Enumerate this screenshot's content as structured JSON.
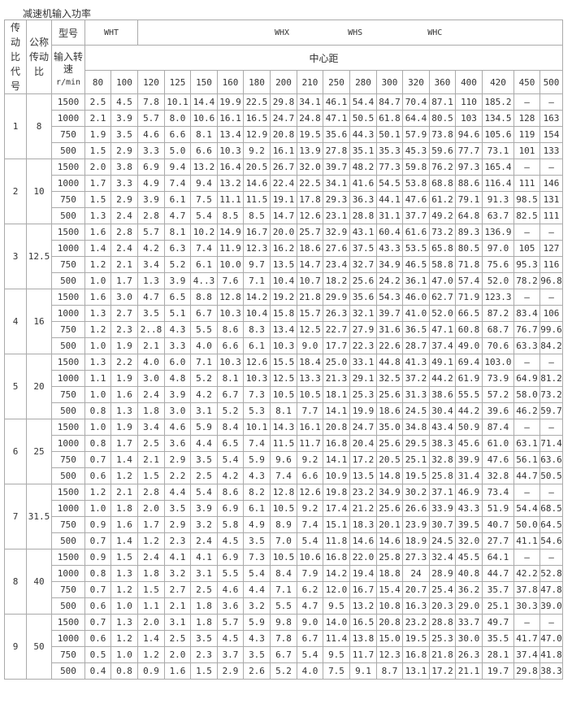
{
  "title": "减速机输入功率",
  "header": {
    "code_label": "传动比代号",
    "ratio_label": "公称传动比",
    "model_label": "型号",
    "speed_label": "输入转速",
    "speed_unit": "r/min",
    "models": [
      "WHT",
      "WHX",
      "WHS",
      "WHC"
    ],
    "center_distance_label": "中心距",
    "center_distances": [
      "80",
      "100",
      "120",
      "125",
      "150",
      "160",
      "180",
      "200",
      "210",
      "250",
      "280",
      "300",
      "320",
      "360",
      "400",
      "420",
      "450",
      "500"
    ]
  },
  "groups": [
    {
      "code": "1",
      "ratio": "8",
      "rows": [
        {
          "speed": "1500",
          "values": [
            "2.5",
            "4.5",
            "7.8",
            "10.1",
            "14.4",
            "19.9",
            "22.5",
            "29.8",
            "34.1",
            "46.1",
            "54.4",
            "84.7",
            "70.4",
            "87.1",
            "110",
            "185.2",
            "—",
            "—"
          ]
        },
        {
          "speed": "1000",
          "values": [
            "2.1",
            "3.9",
            "5.7",
            "8.0",
            "10.6",
            "16.1",
            "16.5",
            "24.7",
            "24.8",
            "47.1",
            "50.5",
            "61.8",
            "64.4",
            "80.5",
            "103",
            "134.5",
            "128",
            "163"
          ]
        },
        {
          "speed": "750",
          "values": [
            "1.9",
            "3.5",
            "4.6",
            "6.6",
            "8.1",
            "13.4",
            "12.9",
            "20.8",
            "19.5",
            "35.6",
            "44.3",
            "50.1",
            "57.9",
            "73.8",
            "94.6",
            "105.6",
            "119",
            "154"
          ]
        },
        {
          "speed": "500",
          "values": [
            "1.5",
            "2.9",
            "3.3",
            "5.0",
            "6.6",
            "10.3",
            "9.2",
            "16.1",
            "13.9",
            "27.8",
            "35.1",
            "35.3",
            "45.3",
            "59.6",
            "77.7",
            "73.1",
            "101",
            "133"
          ]
        }
      ]
    },
    {
      "code": "2",
      "ratio": "10",
      "rows": [
        {
          "speed": "1500",
          "values": [
            "2.0",
            "3.8",
            "6.9",
            "9.4",
            "13.2",
            "16.4",
            "20.5",
            "26.7",
            "32.0",
            "39.7",
            "48.2",
            "77.3",
            "59.8",
            "76.2",
            "97.3",
            "165.4",
            "—",
            "—"
          ]
        },
        {
          "speed": "1000",
          "values": [
            "1.7",
            "3.3",
            "4.9",
            "7.4",
            "9.4",
            "13.2",
            "14.6",
            "22.4",
            "22.5",
            "34.1",
            "41.6",
            "54.5",
            "53.8",
            "68.8",
            "88.6",
            "116.4",
            "111",
            "146"
          ]
        },
        {
          "speed": "750",
          "values": [
            "1.5",
            "2.9",
            "3.9",
            "6.1",
            "7.5",
            "11.1",
            "11.5",
            "19.1",
            "17.8",
            "29.3",
            "36.3",
            "44.1",
            "47.6",
            "61.2",
            "79.1",
            "91.3",
            "98.5",
            "131"
          ]
        },
        {
          "speed": "500",
          "values": [
            "1.3",
            "2.4",
            "2.8",
            "4.7",
            "5.4",
            "8.5",
            "8.5",
            "14.7",
            "12.6",
            "23.1",
            "28.8",
            "31.1",
            "37.7",
            "49.2",
            "64.8",
            "63.7",
            "82.5",
            "111"
          ]
        }
      ]
    },
    {
      "code": "3",
      "ratio": "12.5",
      "rows": [
        {
          "speed": "1500",
          "values": [
            "1.6",
            "2.8",
            "5.7",
            "8.1",
            "10.2",
            "14.9",
            "16.7",
            "20.0",
            "25.7",
            "32.9",
            "43.1",
            "60.4",
            "61.6",
            "73.2",
            "89.3",
            "136.9",
            "—",
            "—"
          ]
        },
        {
          "speed": "1000",
          "values": [
            "1.4",
            "2.4",
            "4.2",
            "6.3",
            "7.4",
            "11.9",
            "12.3",
            "16.2",
            "18.6",
            "27.6",
            "37.5",
            "43.3",
            "53.5",
            "65.8",
            "80.5",
            "97.0",
            "105",
            "127"
          ]
        },
        {
          "speed": "750",
          "values": [
            "1.2",
            "2.1",
            "3.4",
            "5.2",
            "6.1",
            "10.0",
            "9.7",
            "13.5",
            "14.7",
            "23.4",
            "32.7",
            "34.9",
            "46.5",
            "58.8",
            "71.8",
            "75.6",
            "95.3",
            "116"
          ]
        },
        {
          "speed": "500",
          "values": [
            "1.0",
            "1.7",
            "1.3",
            "3.9",
            "4..3",
            "7.6",
            "7.1",
            "10.4",
            "10.7",
            "18.2",
            "25.6",
            "24.2",
            "36.1",
            "47.0",
            "57.4",
            "52.0",
            "78.2",
            "96.8"
          ]
        }
      ]
    },
    {
      "code": "4",
      "ratio": "16",
      "rows": [
        {
          "speed": "1500",
          "values": [
            "1.6",
            "3.0",
            "4.7",
            "6.5",
            "8.8",
            "12.8",
            "14.2",
            "19.2",
            "21.8",
            "29.9",
            "35.6",
            "54.3",
            "46.0",
            "62.7",
            "71.9",
            "123.3",
            "—",
            "—"
          ]
        },
        {
          "speed": "1000",
          "values": [
            "1.3",
            "2.7",
            "3.5",
            "5.1",
            "6.7",
            "10.3",
            "10.4",
            "15.8",
            "15.7",
            "26.3",
            "32.1",
            "39.7",
            "41.0",
            "52.0",
            "66.5",
            "87.2",
            "83.4",
            "106"
          ]
        },
        {
          "speed": "750",
          "values": [
            "1.2",
            "2.3",
            "2..8",
            "4.3",
            "5.5",
            "8.6",
            "8.3",
            "13.4",
            "12.5",
            "22.7",
            "27.9",
            "31.6",
            "36.5",
            "47.1",
            "60.8",
            "68.7",
            "76.7",
            "99.6"
          ]
        },
        {
          "speed": "500",
          "values": [
            "1.0",
            "1.9",
            "2.1",
            "3.3",
            "4.0",
            "6.6",
            "6.1",
            "10.3",
            "9.0",
            "17.7",
            "22.3",
            "22.6",
            "28.7",
            "37.4",
            "49.0",
            "70.6",
            "63.3",
            "84.2"
          ]
        }
      ]
    },
    {
      "code": "5",
      "ratio": "20",
      "rows": [
        {
          "speed": "1500",
          "values": [
            "1.3",
            "2.2",
            "4.0",
            "6.0",
            "7.1",
            "10.3",
            "12.6",
            "15.5",
            "18.4",
            "25.0",
            "33.1",
            "44.8",
            "41.3",
            "49.1",
            "69.4",
            "103.0",
            "—",
            "—"
          ]
        },
        {
          "speed": "1000",
          "values": [
            "1.1",
            "1.9",
            "3.0",
            "4.8",
            "5.2",
            "8.1",
            "10.3",
            "12.5",
            "13.3",
            "21.3",
            "29.1",
            "32.5",
            "37.2",
            "44.2",
            "61.9",
            "73.9",
            "64.9",
            "81.2"
          ]
        },
        {
          "speed": "750",
          "values": [
            "1.0",
            "1.6",
            "2.4",
            "3.9",
            "4.2",
            "6.7",
            "7.3",
            "10.5",
            "10.5",
            "18.1",
            "25.3",
            "25.6",
            "31.3",
            "38.6",
            "55.5",
            "57.2",
            "58.0",
            "73.2"
          ]
        },
        {
          "speed": "500",
          "values": [
            "0.8",
            "1.3",
            "1.8",
            "3.0",
            "3.1",
            "5.2",
            "5.3",
            "8.1",
            "7.7",
            "14.1",
            "19.9",
            "18.6",
            "24.5",
            "30.4",
            "44.2",
            "39.6",
            "46.2",
            "59.7"
          ]
        }
      ]
    },
    {
      "code": "6",
      "ratio": "25",
      "rows": [
        {
          "speed": "1500",
          "values": [
            "1.0",
            "1.9",
            "3.4",
            "4.6",
            "5.9",
            "8.4",
            "10.1",
            "14.3",
            "16.1",
            "20.8",
            "24.7",
            "35.0",
            "34.8",
            "43.4",
            "50.9",
            "87.4",
            "—",
            "—"
          ]
        },
        {
          "speed": "1000",
          "values": [
            "0.8",
            "1.7",
            "2.5",
            "3.6",
            "4.4",
            "6.5",
            "7.4",
            "11.5",
            "11.7",
            "16.8",
            "20.4",
            "25.6",
            "29.5",
            "38.3",
            "45.6",
            "61.0",
            "63.1",
            "71.4"
          ]
        },
        {
          "speed": "750",
          "values": [
            "0.7",
            "1.4",
            "2.1",
            "2.9",
            "3.5",
            "5.4",
            "5.9",
            "9.6",
            "9.2",
            "14.1",
            "17.2",
            "20.5",
            "25.1",
            "32.8",
            "39.9",
            "47.6",
            "56.1",
            "63.6"
          ]
        },
        {
          "speed": "500",
          "values": [
            "0.6",
            "1.2",
            "1.5",
            "2.2",
            "2.5",
            "4.2",
            "4.3",
            "7.4",
            "6.6",
            "10.9",
            "13.5",
            "14.8",
            "19.5",
            "25.8",
            "31.4",
            "32.8",
            "44.7",
            "50.5"
          ]
        }
      ]
    },
    {
      "code": "7",
      "ratio": "31.5",
      "rows": [
        {
          "speed": "1500",
          "values": [
            "1.2",
            "2.1",
            "2.8",
            "4.4",
            "5.4",
            "8.6",
            "8.2",
            "12.8",
            "12.6",
            "19.8",
            "23.2",
            "34.9",
            "30.2",
            "37.1",
            "46.9",
            "73.4",
            "—",
            "—"
          ]
        },
        {
          "speed": "1000",
          "values": [
            "1.0",
            "1.8",
            "2.0",
            "3.5",
            "3.9",
            "6.9",
            "6.1",
            "10.5",
            "9.2",
            "17.4",
            "21.2",
            "25.6",
            "26.6",
            "33.9",
            "43.3",
            "51.9",
            "54.4",
            "68.5"
          ]
        },
        {
          "speed": "750",
          "values": [
            "0.9",
            "1.6",
            "1.7",
            "2.9",
            "3.2",
            "5.8",
            "4.9",
            "8.9",
            "7.4",
            "15.1",
            "18.3",
            "20.1",
            "23.9",
            "30.7",
            "39.5",
            "40.7",
            "50.0",
            "64.5"
          ]
        },
        {
          "speed": "500",
          "values": [
            "0.7",
            "1.4",
            "1.2",
            "2.3",
            "2.4",
            "4.5",
            "3.5",
            "7.0",
            "5.4",
            "11.8",
            "14.6",
            "14.6",
            "18.9",
            "24.5",
            "32.0",
            "27.7",
            "41.1",
            "54.6"
          ]
        }
      ]
    },
    {
      "code": "8",
      "ratio": "40",
      "rows": [
        {
          "speed": "1500",
          "values": [
            "0.9",
            "1.5",
            "2.4",
            "4.1",
            "4.1",
            "6.9",
            "7.3",
            "10.5",
            "10.6",
            "16.8",
            "22.0",
            "25.8",
            "27.3",
            "32.4",
            "45.5",
            "64.1",
            "—",
            "—"
          ]
        },
        {
          "speed": "1000",
          "values": [
            "0.8",
            "1.3",
            "1.8",
            "3.2",
            "3.1",
            "5.5",
            "5.4",
            "8.4",
            "7.9",
            "14.2",
            "19.4",
            "18.8",
            "24",
            "28.9",
            "40.8",
            "44.7",
            "42.2",
            "52.8"
          ]
        },
        {
          "speed": "750",
          "values": [
            "0.7",
            "1.2",
            "1.5",
            "2.7",
            "2.5",
            "4.6",
            "4.4",
            "7.1",
            "6.2",
            "12.0",
            "16.7",
            "15.4",
            "20.7",
            "25.4",
            "36.2",
            "35.7",
            "37.8",
            "47.8"
          ]
        },
        {
          "speed": "500",
          "values": [
            "0.6",
            "1.0",
            "1.1",
            "2.1",
            "1.8",
            "3.6",
            "3.2",
            "5.5",
            "4.7",
            "9.5",
            "13.2",
            "10.8",
            "16.3",
            "20.3",
            "29.0",
            "25.1",
            "30.3",
            "39.0"
          ]
        }
      ]
    },
    {
      "code": "9",
      "ratio": "50",
      "rows": [
        {
          "speed": "1500",
          "values": [
            "0.7",
            "1.3",
            "2.0",
            "3.1",
            "1.8",
            "5.7",
            "5.9",
            "9.8",
            "9.0",
            "14.0",
            "16.5",
            "20.8",
            "23.2",
            "28.8",
            "33.7",
            "49.7",
            "—",
            "—"
          ]
        },
        {
          "speed": "1000",
          "values": [
            "0.6",
            "1.2",
            "1.4",
            "2.5",
            "3.5",
            "4.5",
            "4.3",
            "7.8",
            "6.7",
            "11.4",
            "13.8",
            "15.0",
            "19.5",
            "25.3",
            "30.0",
            "35.5",
            "41.7",
            "47.0"
          ]
        },
        {
          "speed": "750",
          "values": [
            "0.5",
            "1.0",
            "1.2",
            "2.0",
            "2.3",
            "3.7",
            "3.5",
            "6.7",
            "5.4",
            "9.5",
            "11.7",
            "12.3",
            "16.8",
            "21.8",
            "26.3",
            "28.1",
            "37.4",
            "41.8"
          ]
        },
        {
          "speed": "500",
          "values": [
            "0.4",
            "0.8",
            "0.9",
            "1.6",
            "1.5",
            "2.9",
            "2.6",
            "5.2",
            "4.0",
            "7.5",
            "9.1",
            "8.7",
            "13.1",
            "17.2",
            "21.1",
            "19.7",
            "29.8",
            "38.3"
          ]
        }
      ]
    }
  ]
}
